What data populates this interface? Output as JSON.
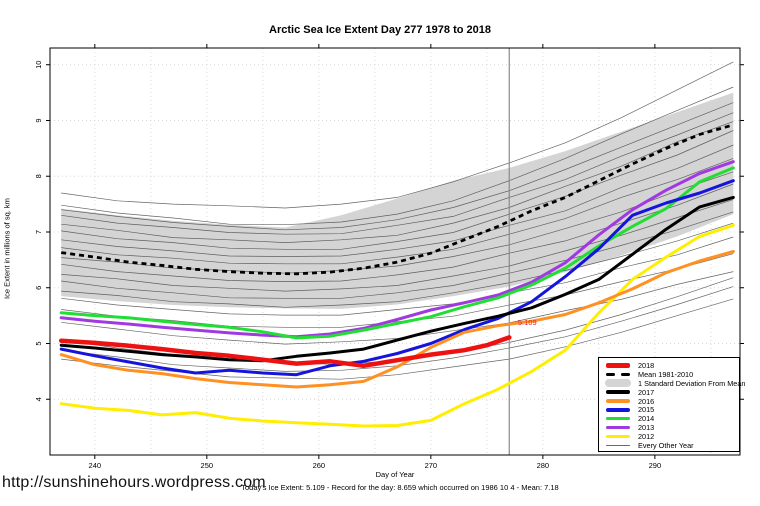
{
  "page": {
    "watermark": "http://sunshinehours.wordpress.com"
  },
  "chart_data": {
    "type": "line",
    "title": "Arctic Sea Ice Extent Day 277 1978 to 2018",
    "xlabel": "Day of Year",
    "ylabel": "Ice Extent in millions of sq. km",
    "subtitle": "Today's Ice Extent: 5.109  - Record for the day: 8.659 which occurred on 1986 10 4  - Mean: 7.18",
    "xlim": [
      236.0,
      297.6
    ],
    "ylim": [
      3.0,
      10.3
    ],
    "xticks": [
      240,
      250,
      260,
      270,
      280,
      290
    ],
    "yticks": [
      4,
      5,
      6,
      7,
      8,
      9,
      10
    ],
    "grid_x_days": [
      240,
      245,
      250,
      255,
      260,
      265,
      270,
      275,
      280,
      285,
      290,
      295
    ],
    "grid_color": "#d7d7d7",
    "today_line": {
      "day": 277,
      "color": "#8a8a8a"
    },
    "annotation": {
      "text": "5.109",
      "day": 277.5,
      "value": 5.33,
      "color": "#e0281e"
    },
    "band": {
      "label": "1 Standard Deviation From Mean",
      "color": "#d4d4d4",
      "days": [
        237,
        242,
        247,
        252,
        257,
        262,
        267,
        272,
        277,
        282,
        287,
        292,
        297
      ],
      "top": [
        7.42,
        7.3,
        7.2,
        7.13,
        7.08,
        7.3,
        7.6,
        7.92,
        8.15,
        8.45,
        8.8,
        9.15,
        9.5
      ],
      "bottom": [
        5.85,
        5.76,
        5.69,
        5.65,
        5.63,
        5.62,
        5.7,
        5.85,
        6.02,
        6.28,
        6.58,
        6.92,
        7.32
      ]
    },
    "mean": {
      "label": "Mean 1981-2010",
      "color": "#000000",
      "dashed": true,
      "days": [
        237,
        240,
        243,
        246,
        249,
        252,
        255,
        258,
        261,
        264,
        267,
        270,
        273,
        276,
        279,
        282,
        285,
        288,
        291,
        294,
        297
      ],
      "values": [
        6.63,
        6.55,
        6.46,
        6.4,
        6.33,
        6.29,
        6.26,
        6.25,
        6.28,
        6.35,
        6.46,
        6.62,
        6.86,
        7.1,
        7.38,
        7.62,
        7.92,
        8.22,
        8.5,
        8.75,
        8.92
      ]
    },
    "series": [
      {
        "name": "2012",
        "color": "#ffee00",
        "width": 3,
        "days": [
          237,
          240,
          243,
          246,
          249,
          252,
          255,
          258,
          261,
          264,
          267,
          270,
          273,
          276,
          279,
          282,
          285,
          288,
          291,
          294,
          297
        ],
        "values": [
          3.92,
          3.84,
          3.8,
          3.72,
          3.76,
          3.66,
          3.61,
          3.58,
          3.55,
          3.52,
          3.53,
          3.62,
          3.92,
          4.18,
          4.5,
          4.88,
          5.55,
          6.15,
          6.55,
          6.92,
          7.12
        ]
      },
      {
        "name": "2013",
        "color": "#a03ae0",
        "width": 3,
        "days": [
          237,
          240,
          243,
          246,
          249,
          252,
          255,
          258,
          261,
          264,
          267,
          270,
          273,
          276,
          279,
          282,
          285,
          288,
          291,
          294,
          297
        ],
        "values": [
          5.46,
          5.4,
          5.35,
          5.29,
          5.24,
          5.19,
          5.15,
          5.12,
          5.17,
          5.27,
          5.43,
          5.6,
          5.73,
          5.87,
          6.1,
          6.45,
          6.95,
          7.4,
          7.75,
          8.05,
          8.26
        ]
      },
      {
        "name": "2014",
        "color": "#22dd33",
        "width": 3,
        "days": [
          237,
          240,
          243,
          246,
          249,
          252,
          255,
          258,
          261,
          264,
          267,
          270,
          273,
          276,
          279,
          282,
          285,
          288,
          291,
          294,
          297
        ],
        "values": [
          5.55,
          5.5,
          5.46,
          5.4,
          5.34,
          5.29,
          5.21,
          5.1,
          5.13,
          5.24,
          5.36,
          5.48,
          5.66,
          5.82,
          6.05,
          6.35,
          6.75,
          7.1,
          7.42,
          7.9,
          8.15
        ]
      },
      {
        "name": "2015",
        "color": "#1414dd",
        "width": 3,
        "days": [
          237,
          240,
          243,
          246,
          249,
          252,
          255,
          258,
          261,
          264,
          267,
          270,
          273,
          276,
          279,
          282,
          285,
          288,
          291,
          294,
          297
        ],
        "values": [
          4.9,
          4.78,
          4.67,
          4.56,
          4.47,
          4.52,
          4.47,
          4.44,
          4.6,
          4.68,
          4.82,
          5.0,
          5.25,
          5.45,
          5.75,
          6.2,
          6.7,
          7.3,
          7.52,
          7.7,
          7.92
        ]
      },
      {
        "name": "2016",
        "color": "#ff9022",
        "width": 3,
        "days": [
          237,
          240,
          243,
          246,
          249,
          252,
          255,
          258,
          261,
          264,
          267,
          270,
          273,
          276,
          279,
          282,
          285,
          288,
          291,
          294,
          297
        ],
        "values": [
          4.8,
          4.62,
          4.52,
          4.46,
          4.37,
          4.3,
          4.26,
          4.22,
          4.26,
          4.32,
          4.58,
          4.93,
          5.2,
          5.32,
          5.4,
          5.52,
          5.73,
          5.98,
          6.27,
          6.48,
          6.65
        ]
      },
      {
        "name": "2017",
        "color": "#000000",
        "width": 3,
        "days": [
          237,
          240,
          243,
          246,
          249,
          252,
          255,
          258,
          261,
          264,
          267,
          270,
          273,
          276,
          279,
          282,
          285,
          288,
          291,
          294,
          297
        ],
        "values": [
          4.97,
          4.92,
          4.86,
          4.8,
          4.76,
          4.71,
          4.69,
          4.77,
          4.83,
          4.9,
          5.06,
          5.22,
          5.36,
          5.49,
          5.64,
          5.88,
          6.15,
          6.6,
          7.05,
          7.45,
          7.62
        ]
      },
      {
        "name": "2018",
        "color": "#ee1111",
        "width": 4.5,
        "days": [
          237,
          240,
          243,
          246,
          249,
          252,
          255,
          258,
          261,
          264,
          267,
          270,
          273,
          275,
          277
        ],
        "values": [
          5.05,
          5.01,
          4.96,
          4.9,
          4.83,
          4.78,
          4.71,
          4.64,
          4.68,
          4.6,
          4.7,
          4.8,
          4.88,
          4.97,
          5.109
        ]
      }
    ],
    "other_years": {
      "label": "Every Other Year",
      "color": "#4a4a4a",
      "days": [
        237,
        242,
        247,
        252,
        257,
        262,
        267,
        272,
        277,
        282,
        287,
        292,
        297
      ],
      "lines": [
        [
          7.7,
          7.56,
          7.5,
          7.47,
          7.43,
          7.5,
          7.62,
          7.9,
          8.24,
          8.6,
          9.05,
          9.55,
          10.05
        ],
        [
          7.48,
          7.34,
          7.25,
          7.14,
          7.13,
          7.18,
          7.32,
          7.56,
          7.92,
          8.32,
          8.76,
          9.18,
          9.6
        ],
        [
          7.4,
          7.28,
          7.17,
          7.1,
          7.04,
          7.08,
          7.22,
          7.44,
          7.74,
          8.12,
          8.52,
          8.92,
          9.32
        ],
        [
          7.3,
          7.16,
          7.08,
          6.99,
          6.96,
          6.97,
          7.12,
          7.28,
          7.62,
          7.94,
          8.36,
          8.74,
          9.14
        ],
        [
          7.14,
          7.03,
          6.9,
          6.86,
          6.81,
          6.86,
          6.94,
          7.16,
          7.44,
          7.82,
          8.18,
          8.62,
          8.98
        ],
        [
          7.02,
          6.88,
          6.81,
          6.71,
          6.69,
          6.69,
          6.83,
          6.99,
          7.32,
          7.64,
          8.02,
          8.38,
          8.82
        ],
        [
          6.86,
          6.74,
          6.66,
          6.57,
          6.56,
          6.57,
          6.69,
          6.84,
          7.12,
          7.38,
          7.8,
          8.14,
          8.56
        ],
        [
          6.72,
          6.59,
          6.53,
          6.44,
          6.43,
          6.43,
          6.55,
          6.69,
          6.96,
          7.24,
          7.62,
          7.94,
          8.32
        ],
        [
          6.54,
          6.46,
          6.35,
          6.31,
          6.26,
          6.31,
          6.39,
          6.56,
          6.77,
          7.06,
          7.36,
          7.74,
          8.08
        ],
        [
          6.42,
          6.29,
          6.21,
          6.13,
          6.11,
          6.12,
          6.23,
          6.37,
          6.62,
          6.84,
          7.16,
          7.48,
          7.86
        ],
        [
          6.24,
          6.16,
          6.04,
          5.99,
          5.94,
          5.98,
          6.04,
          6.21,
          6.39,
          6.66,
          6.94,
          7.26,
          7.58
        ],
        [
          6.12,
          5.99,
          5.91,
          5.82,
          5.81,
          5.81,
          5.91,
          6.04,
          6.26,
          6.49,
          6.76,
          7.04,
          7.36
        ],
        [
          5.94,
          5.86,
          5.75,
          5.71,
          5.65,
          5.69,
          5.75,
          5.91,
          6.09,
          6.31,
          6.56,
          6.84,
          7.16
        ],
        [
          5.81,
          5.69,
          5.61,
          5.53,
          5.51,
          5.51,
          5.61,
          5.71,
          5.91,
          6.09,
          6.36,
          6.59,
          6.91
        ],
        [
          5.61,
          5.49,
          5.41,
          5.31,
          5.29,
          5.29,
          5.39,
          5.49,
          5.69,
          5.87,
          6.11,
          6.34,
          6.61
        ],
        [
          5.38,
          5.26,
          5.14,
          5.06,
          4.99,
          5.03,
          5.09,
          5.23,
          5.37,
          5.59,
          5.79,
          6.06,
          6.29
        ],
        [
          5.06,
          4.92,
          4.8,
          4.7,
          4.66,
          4.62,
          4.7,
          4.84,
          5.02,
          5.24,
          5.52,
          5.84,
          6.18
        ],
        [
          4.88,
          4.76,
          4.62,
          4.56,
          4.5,
          4.52,
          4.6,
          4.74,
          4.92,
          5.12,
          5.4,
          5.7,
          6.02
        ],
        [
          4.72,
          4.6,
          4.5,
          4.4,
          4.38,
          4.36,
          4.44,
          4.58,
          4.72,
          4.94,
          5.2,
          5.5,
          5.8
        ]
      ]
    }
  },
  "legend": {
    "items": [
      {
        "label": "2018",
        "swatch": "line",
        "color": "#ee1111",
        "thickness": 4.5
      },
      {
        "label": "Mean 1981-2010",
        "swatch": "dashes",
        "color": "#000000",
        "thickness": 3.4
      },
      {
        "label": "1 Standard Deviation From Mean",
        "swatch": "band",
        "color": "#d4d4d4",
        "thickness": 8
      },
      {
        "label": "2017",
        "swatch": "line",
        "color": "#000000",
        "thickness": 3.4
      },
      {
        "label": "2016",
        "swatch": "line",
        "color": "#ff9022",
        "thickness": 3.4
      },
      {
        "label": "2015",
        "swatch": "line",
        "color": "#1414dd",
        "thickness": 3.4
      },
      {
        "label": "2014",
        "swatch": "line",
        "color": "#22dd33",
        "thickness": 3.4
      },
      {
        "label": "2013",
        "swatch": "line",
        "color": "#a03ae0",
        "thickness": 3.4
      },
      {
        "label": "2012",
        "swatch": "line",
        "color": "#ffee00",
        "thickness": 3.4
      },
      {
        "label": "Every Other Year",
        "swatch": "line",
        "color": "#6a6a6a",
        "thickness": 1
      }
    ]
  }
}
